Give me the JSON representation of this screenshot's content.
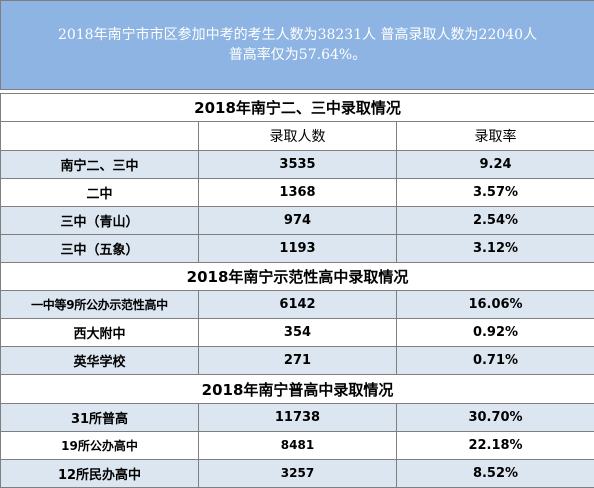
{
  "banner": {
    "line1": "2018年南宁市市区参加中考的考生人数为38231人 普高录取人数为22040人",
    "line2": "普高率仅为57.64%。"
  },
  "sections": [
    {
      "title": "2018年南宁二、三中录取情况",
      "columns": [
        "",
        "录取人数",
        "录取率"
      ],
      "rows": [
        {
          "name": "南宁二、三中",
          "count": "3535",
          "rate": "9.24"
        },
        {
          "name": "二中",
          "count": "1368",
          "rate": "3.57%"
        },
        {
          "name": "三中（青山）",
          "count": "974",
          "rate": "2.54%"
        },
        {
          "name": "三中（五象）",
          "count": "1193",
          "rate": "3.12%"
        }
      ]
    },
    {
      "title": "2018年南宁示范性高中录取情况",
      "rows": [
        {
          "name": "一中等9所公办示范性高中",
          "count": "6142",
          "rate": "16.06%"
        },
        {
          "name": "西大附中",
          "count": "354",
          "rate": "0.92%"
        },
        {
          "name": "英华学校",
          "count": "271",
          "rate": "0.71%"
        }
      ]
    },
    {
      "title": "2018年南宁普高中录取情况",
      "rows": [
        {
          "name": "31所普高",
          "count": "11738",
          "rate": "30.70%"
        },
        {
          "name": "19所公办高中",
          "count": "8481",
          "rate": "22.18%"
        },
        {
          "name": "12所民办高中",
          "count": "3257",
          "rate": "8.52%"
        }
      ]
    }
  ]
}
